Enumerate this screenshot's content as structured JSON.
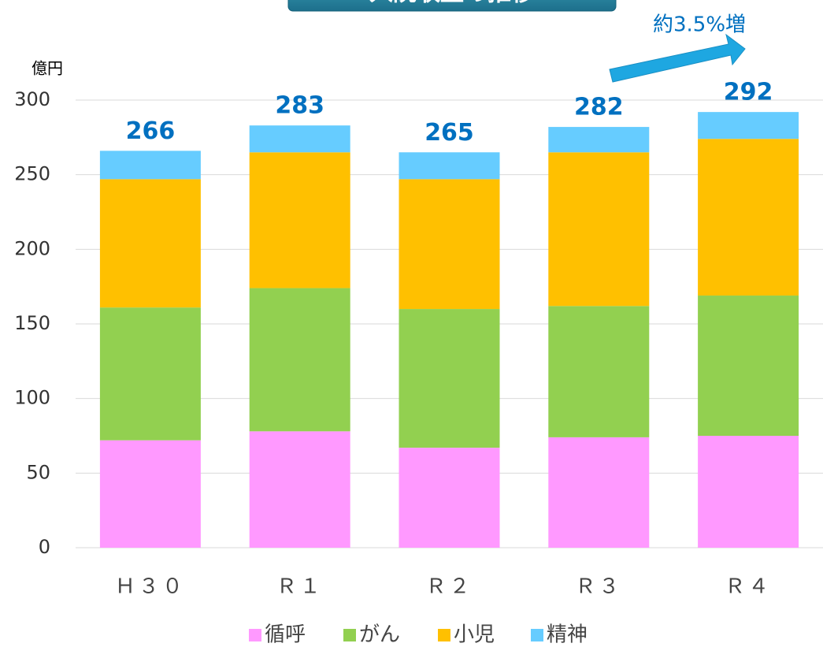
{
  "chart_data": {
    "type": "stacked_bar",
    "title": "入院収益の推移",
    "y_label": "億円",
    "annotation": "約3.5%増",
    "categories": [
      "Ｈ３０",
      "Ｒ１",
      "Ｒ２",
      "Ｒ３",
      "Ｒ４"
    ],
    "series": [
      {
        "name": "循呼",
        "color": "#ff99ff",
        "values": [
          72,
          78,
          67,
          74,
          75
        ]
      },
      {
        "name": "がん",
        "color": "#92d050",
        "values": [
          89,
          96,
          93,
          88,
          94
        ]
      },
      {
        "name": "小児",
        "color": "#ffc000",
        "values": [
          86,
          91,
          87,
          103,
          105
        ]
      },
      {
        "name": "精神",
        "color": "#66ccff",
        "values": [
          19,
          18,
          18,
          17,
          18
        ]
      }
    ],
    "totals": [
      266,
      283,
      265,
      282,
      292
    ],
    "ylim": [
      0,
      300
    ],
    "yticks": [
      0,
      50,
      100,
      150,
      200,
      250,
      300
    ],
    "grid": true,
    "legend": "bottom"
  }
}
